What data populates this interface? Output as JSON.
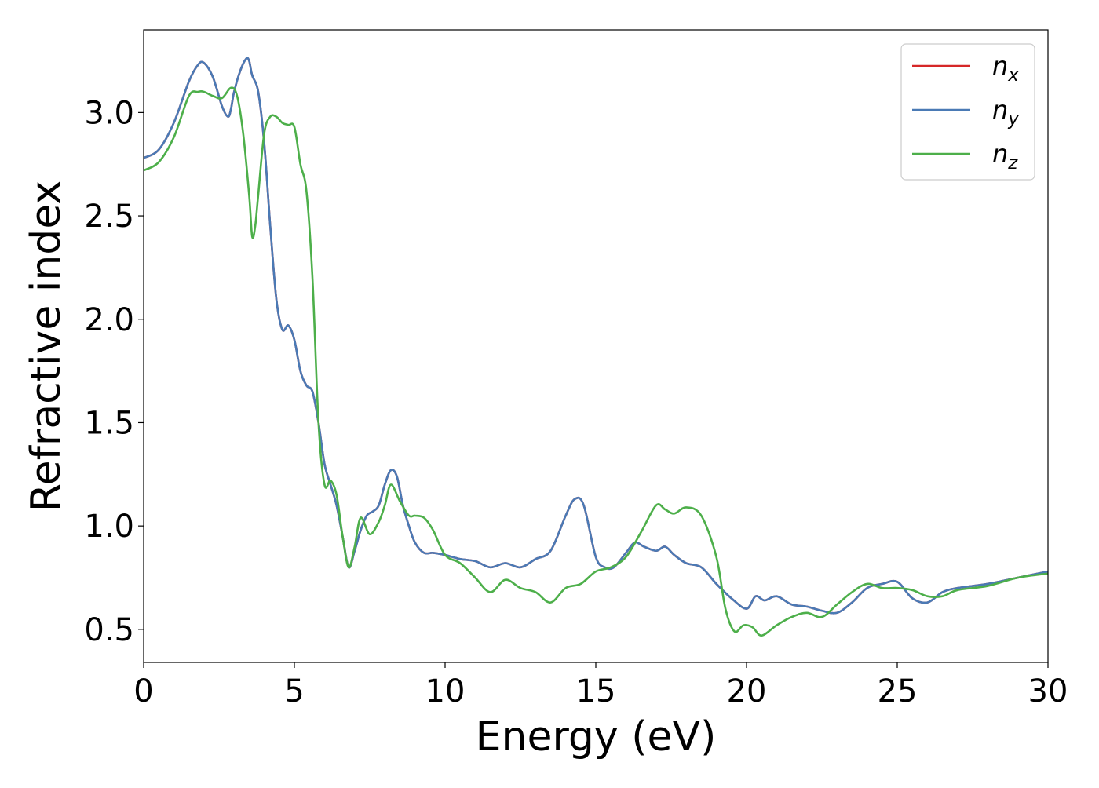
{
  "chart_data": {
    "type": "line",
    "title": "",
    "xlabel": "Energy (eV)",
    "ylabel": "Refractive index",
    "xlim": [
      0,
      30
    ],
    "ylim": [
      0.34,
      3.4
    ],
    "xticks": [
      0,
      5,
      10,
      15,
      20,
      25,
      30
    ],
    "xtick_labels": [
      "0",
      "5",
      "10",
      "15",
      "20",
      "25",
      "30"
    ],
    "yticks": [
      0.5,
      1.0,
      1.5,
      2.0,
      2.5,
      3.0
    ],
    "ytick_labels": [
      "0.5",
      "1.0",
      "1.5",
      "2.0",
      "2.5",
      "3.0"
    ],
    "grid": false,
    "legend_position": "top-right",
    "series": [
      {
        "name": "n",
        "subscript": "x",
        "color": "#d62728",
        "x": [
          0,
          0.5,
          1.0,
          1.5,
          1.8,
          2.0,
          2.3,
          2.6,
          2.8,
          2.9,
          3.0,
          3.2,
          3.4,
          3.5,
          3.6,
          3.8,
          4.0,
          4.2,
          4.4,
          4.6,
          4.8,
          5.0,
          5.2,
          5.4,
          5.6,
          5.8,
          6.0,
          6.2,
          6.4,
          6.6,
          6.8,
          7.0,
          7.2,
          7.4,
          7.6,
          7.8,
          8.0,
          8.2,
          8.4,
          8.6,
          8.8,
          9.0,
          9.3,
          9.6,
          10.0,
          10.5,
          11.0,
          11.5,
          12.0,
          12.5,
          13.0,
          13.5,
          14.0,
          14.3,
          14.6,
          15.0,
          15.3,
          15.6,
          16.0,
          16.3,
          16.6,
          17.0,
          17.3,
          17.6,
          18.0,
          18.5,
          19.0,
          19.5,
          20.0,
          20.3,
          20.6,
          21.0,
          21.5,
          22.0,
          22.5,
          23.0,
          23.5,
          24.0,
          24.5,
          25.0,
          25.5,
          26.0,
          26.5,
          27.0,
          28.0,
          29.0,
          30.0
        ],
        "y": [
          2.78,
          2.82,
          2.95,
          3.15,
          3.23,
          3.24,
          3.17,
          3.03,
          2.98,
          3.02,
          3.1,
          3.2,
          3.26,
          3.25,
          3.18,
          3.1,
          2.85,
          2.45,
          2.1,
          1.95,
          1.97,
          1.9,
          1.75,
          1.68,
          1.65,
          1.5,
          1.3,
          1.2,
          1.1,
          0.95,
          0.8,
          0.88,
          0.98,
          1.05,
          1.07,
          1.1,
          1.2,
          1.27,
          1.24,
          1.1,
          1.0,
          0.92,
          0.87,
          0.87,
          0.86,
          0.84,
          0.83,
          0.8,
          0.82,
          0.8,
          0.84,
          0.88,
          1.05,
          1.13,
          1.1,
          0.85,
          0.8,
          0.8,
          0.87,
          0.92,
          0.9,
          0.88,
          0.9,
          0.86,
          0.82,
          0.8,
          0.72,
          0.65,
          0.6,
          0.66,
          0.64,
          0.66,
          0.62,
          0.61,
          0.59,
          0.58,
          0.63,
          0.7,
          0.72,
          0.73,
          0.65,
          0.63,
          0.68,
          0.7,
          0.72,
          0.75,
          0.78
        ]
      },
      {
        "name": "n",
        "subscript": "y",
        "color": "#4a7ab5",
        "x": [
          0,
          0.5,
          1.0,
          1.5,
          1.8,
          2.0,
          2.3,
          2.6,
          2.8,
          2.9,
          3.0,
          3.2,
          3.4,
          3.5,
          3.6,
          3.8,
          4.0,
          4.2,
          4.4,
          4.6,
          4.8,
          5.0,
          5.2,
          5.4,
          5.6,
          5.8,
          6.0,
          6.2,
          6.4,
          6.6,
          6.8,
          7.0,
          7.2,
          7.4,
          7.6,
          7.8,
          8.0,
          8.2,
          8.4,
          8.6,
          8.8,
          9.0,
          9.3,
          9.6,
          10.0,
          10.5,
          11.0,
          11.5,
          12.0,
          12.5,
          13.0,
          13.5,
          14.0,
          14.3,
          14.6,
          15.0,
          15.3,
          15.6,
          16.0,
          16.3,
          16.6,
          17.0,
          17.3,
          17.6,
          18.0,
          18.5,
          19.0,
          19.5,
          20.0,
          20.3,
          20.6,
          21.0,
          21.5,
          22.0,
          22.5,
          23.0,
          23.5,
          24.0,
          24.5,
          25.0,
          25.5,
          26.0,
          26.5,
          27.0,
          28.0,
          29.0,
          30.0
        ],
        "y": [
          2.78,
          2.82,
          2.95,
          3.15,
          3.23,
          3.24,
          3.17,
          3.03,
          2.98,
          3.02,
          3.1,
          3.2,
          3.26,
          3.25,
          3.18,
          3.1,
          2.85,
          2.45,
          2.1,
          1.95,
          1.97,
          1.9,
          1.75,
          1.68,
          1.65,
          1.5,
          1.3,
          1.2,
          1.1,
          0.95,
          0.8,
          0.88,
          0.98,
          1.05,
          1.07,
          1.1,
          1.2,
          1.27,
          1.24,
          1.1,
          1.0,
          0.92,
          0.87,
          0.87,
          0.86,
          0.84,
          0.83,
          0.8,
          0.82,
          0.8,
          0.84,
          0.88,
          1.05,
          1.13,
          1.1,
          0.85,
          0.8,
          0.8,
          0.87,
          0.92,
          0.9,
          0.88,
          0.9,
          0.86,
          0.82,
          0.8,
          0.72,
          0.65,
          0.6,
          0.66,
          0.64,
          0.66,
          0.62,
          0.61,
          0.59,
          0.58,
          0.63,
          0.7,
          0.72,
          0.73,
          0.65,
          0.63,
          0.68,
          0.7,
          0.72,
          0.75,
          0.78
        ]
      },
      {
        "name": "n",
        "subscript": "z",
        "color": "#4daf4a",
        "x": [
          0,
          0.5,
          1.0,
          1.5,
          1.8,
          2.0,
          2.3,
          2.6,
          2.9,
          3.1,
          3.3,
          3.5,
          3.6,
          3.7,
          3.8,
          4.0,
          4.2,
          4.4,
          4.6,
          4.8,
          5.0,
          5.2,
          5.4,
          5.6,
          5.8,
          6.0,
          6.2,
          6.4,
          6.6,
          6.8,
          7.0,
          7.2,
          7.5,
          7.8,
          8.0,
          8.2,
          8.5,
          8.8,
          9.0,
          9.3,
          9.6,
          10.0,
          10.5,
          11.0,
          11.5,
          12.0,
          12.5,
          13.0,
          13.5,
          14.0,
          14.5,
          15.0,
          15.5,
          16.0,
          16.5,
          17.0,
          17.3,
          17.6,
          18.0,
          18.5,
          19.0,
          19.3,
          19.6,
          19.9,
          20.2,
          20.5,
          21.0,
          21.5,
          22.0,
          22.5,
          23.0,
          23.5,
          24.0,
          24.5,
          25.0,
          25.5,
          26.0,
          26.5,
          27.0,
          28.0,
          29.0,
          30.0
        ],
        "y": [
          2.72,
          2.76,
          2.88,
          3.08,
          3.1,
          3.1,
          3.08,
          3.07,
          3.12,
          3.08,
          2.9,
          2.6,
          2.4,
          2.45,
          2.6,
          2.9,
          2.98,
          2.98,
          2.95,
          2.94,
          2.93,
          2.75,
          2.62,
          2.2,
          1.5,
          1.2,
          1.22,
          1.15,
          0.95,
          0.8,
          0.9,
          1.04,
          0.96,
          1.02,
          1.1,
          1.2,
          1.12,
          1.05,
          1.05,
          1.04,
          0.98,
          0.86,
          0.82,
          0.75,
          0.68,
          0.74,
          0.7,
          0.68,
          0.63,
          0.7,
          0.72,
          0.78,
          0.8,
          0.85,
          0.97,
          1.1,
          1.08,
          1.06,
          1.09,
          1.05,
          0.85,
          0.6,
          0.49,
          0.52,
          0.51,
          0.47,
          0.52,
          0.56,
          0.58,
          0.56,
          0.62,
          0.68,
          0.72,
          0.7,
          0.7,
          0.69,
          0.66,
          0.66,
          0.69,
          0.71,
          0.75,
          0.77
        ]
      }
    ]
  }
}
